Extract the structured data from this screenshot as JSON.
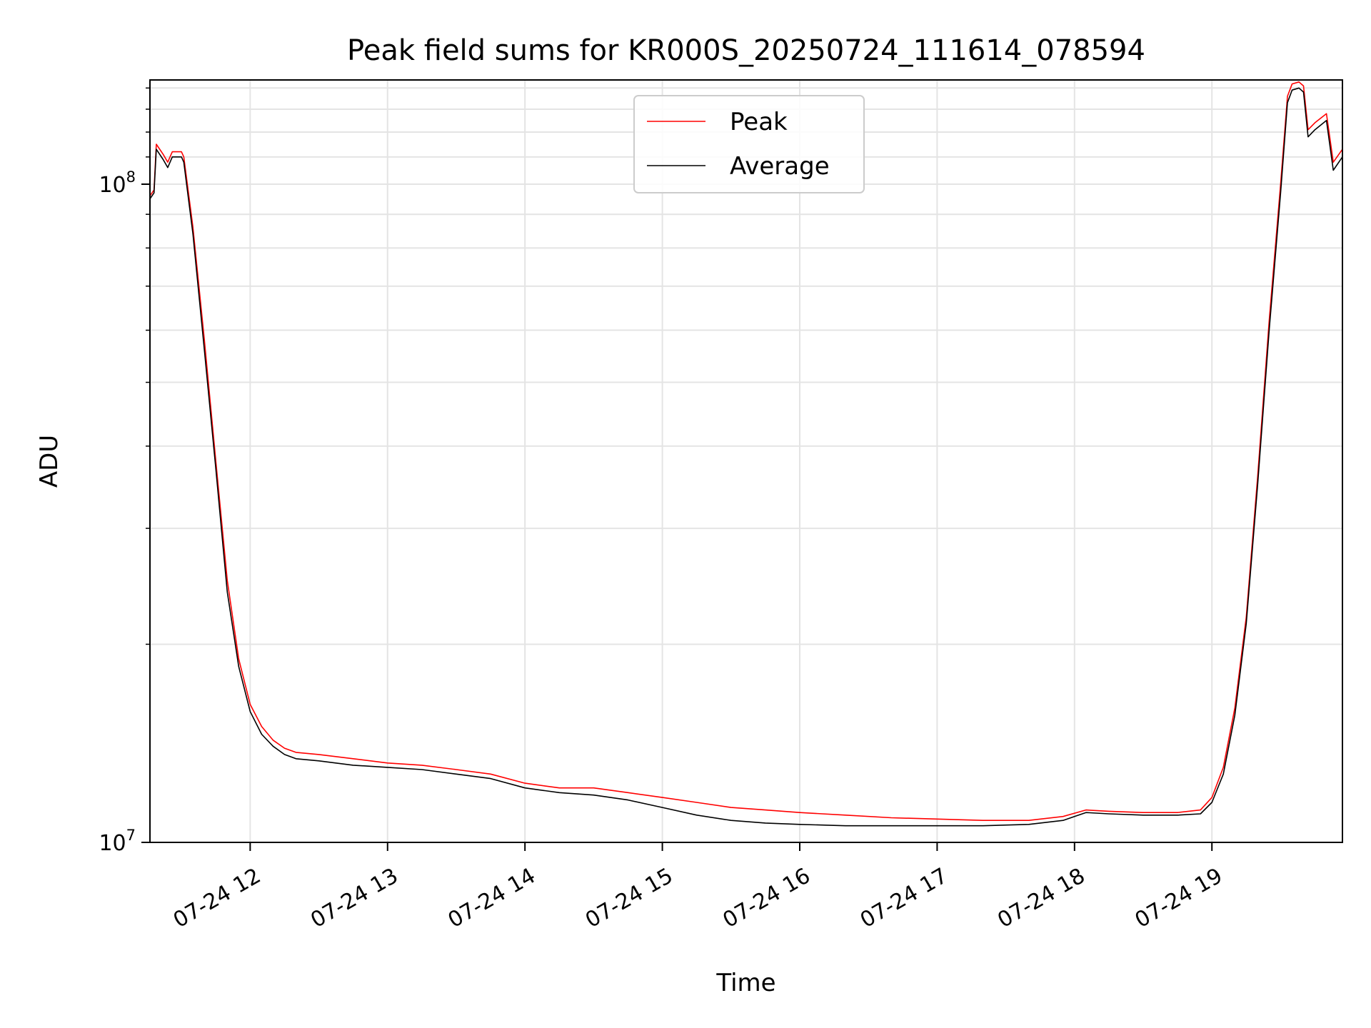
{
  "chart_data": {
    "type": "line",
    "title": "Peak field sums for KR000S_20250724_111614_078594",
    "xlabel": "Time",
    "ylabel": "ADU",
    "y_scale": "log",
    "ylim": [
      10000000,
      144000000
    ],
    "xlim": [
      "2025-07-24T11:16:14",
      "2025-07-24T19:57:00"
    ],
    "x_ticks": [
      {
        "t": "2025-07-24T12:00:00",
        "label": "07-24 12"
      },
      {
        "t": "2025-07-24T13:00:00",
        "label": "07-24 13"
      },
      {
        "t": "2025-07-24T14:00:00",
        "label": "07-24 14"
      },
      {
        "t": "2025-07-24T15:00:00",
        "label": "07-24 15"
      },
      {
        "t": "2025-07-24T16:00:00",
        "label": "07-24 16"
      },
      {
        "t": "2025-07-24T17:00:00",
        "label": "07-24 17"
      },
      {
        "t": "2025-07-24T18:00:00",
        "label": "07-24 18"
      },
      {
        "t": "2025-07-24T19:00:00",
        "label": "07-24 19"
      }
    ],
    "y_ticks": [
      {
        "v": 10000000,
        "base": "10",
        "exp": "7"
      },
      {
        "v": 100000000,
        "base": "10",
        "exp": "8"
      }
    ],
    "grid": true,
    "legend_position": "upper center",
    "series": [
      {
        "name": "Peak",
        "color": "#ff0000",
        "points": [
          [
            "2025-07-24T11:16:14",
            96000000
          ],
          [
            "2025-07-24T11:18:00",
            98000000
          ],
          [
            "2025-07-24T11:19:00",
            115000000
          ],
          [
            "2025-07-24T11:22:00",
            111000000
          ],
          [
            "2025-07-24T11:24:00",
            108000000
          ],
          [
            "2025-07-24T11:26:00",
            112000000
          ],
          [
            "2025-07-24T11:30:00",
            112000000
          ],
          [
            "2025-07-24T11:31:00",
            110000000
          ],
          [
            "2025-07-24T11:35:00",
            86000000
          ],
          [
            "2025-07-24T11:40:00",
            58000000
          ],
          [
            "2025-07-24T11:45:00",
            38000000
          ],
          [
            "2025-07-24T11:50:00",
            25000000
          ],
          [
            "2025-07-24T11:55:00",
            19000000
          ],
          [
            "2025-07-24T12:00:00",
            16200000
          ],
          [
            "2025-07-24T12:05:00",
            15000000
          ],
          [
            "2025-07-24T12:10:00",
            14300000
          ],
          [
            "2025-07-24T12:15:00",
            13900000
          ],
          [
            "2025-07-24T12:20:00",
            13700000
          ],
          [
            "2025-07-24T12:30:00",
            13600000
          ],
          [
            "2025-07-24T12:45:00",
            13400000
          ],
          [
            "2025-07-24T13:00:00",
            13200000
          ],
          [
            "2025-07-24T13:15:00",
            13100000
          ],
          [
            "2025-07-24T13:30:00",
            12900000
          ],
          [
            "2025-07-24T13:45:00",
            12700000
          ],
          [
            "2025-07-24T14:00:00",
            12300000
          ],
          [
            "2025-07-24T14:15:00",
            12100000
          ],
          [
            "2025-07-24T14:30:00",
            12100000
          ],
          [
            "2025-07-24T14:45:00",
            11900000
          ],
          [
            "2025-07-24T15:00:00",
            11700000
          ],
          [
            "2025-07-24T15:15:00",
            11500000
          ],
          [
            "2025-07-24T15:30:00",
            11300000
          ],
          [
            "2025-07-24T15:45:00",
            11200000
          ],
          [
            "2025-07-24T16:00:00",
            11100000
          ],
          [
            "2025-07-24T16:20:00",
            11000000
          ],
          [
            "2025-07-24T16:40:00",
            10900000
          ],
          [
            "2025-07-24T17:00:00",
            10850000
          ],
          [
            "2025-07-24T17:20:00",
            10800000
          ],
          [
            "2025-07-24T17:40:00",
            10800000
          ],
          [
            "2025-07-24T17:55:00",
            10950000
          ],
          [
            "2025-07-24T18:05:00",
            11200000
          ],
          [
            "2025-07-24T18:15:00",
            11150000
          ],
          [
            "2025-07-24T18:30:00",
            11100000
          ],
          [
            "2025-07-24T18:45:00",
            11100000
          ],
          [
            "2025-07-24T18:55:00",
            11200000
          ],
          [
            "2025-07-24T19:00:00",
            11700000
          ],
          [
            "2025-07-24T19:05:00",
            13000000
          ],
          [
            "2025-07-24T19:10:00",
            16000000
          ],
          [
            "2025-07-24T19:15:00",
            22000000
          ],
          [
            "2025-07-24T19:20:00",
            36000000
          ],
          [
            "2025-07-24T19:25:00",
            62000000
          ],
          [
            "2025-07-24T19:30:00",
            100000000
          ],
          [
            "2025-07-24T19:33:00",
            136000000
          ],
          [
            "2025-07-24T19:35:00",
            142000000
          ],
          [
            "2025-07-24T19:38:00",
            143000000
          ],
          [
            "2025-07-24T19:40:00",
            141000000
          ],
          [
            "2025-07-24T19:42:00",
            121000000
          ],
          [
            "2025-07-24T19:45:00",
            124000000
          ],
          [
            "2025-07-24T19:50:00",
            128000000
          ],
          [
            "2025-07-24T19:53:00",
            108000000
          ],
          [
            "2025-07-24T19:57:00",
            113000000
          ]
        ]
      },
      {
        "name": "Average",
        "color": "#000000",
        "points": [
          [
            "2025-07-24T11:16:14",
            95000000
          ],
          [
            "2025-07-24T11:18:00",
            97000000
          ],
          [
            "2025-07-24T11:19:00",
            113000000
          ],
          [
            "2025-07-24T11:22:00",
            109000000
          ],
          [
            "2025-07-24T11:24:00",
            106000000
          ],
          [
            "2025-07-24T11:26:00",
            110000000
          ],
          [
            "2025-07-24T11:30:00",
            110000000
          ],
          [
            "2025-07-24T11:31:00",
            108000000
          ],
          [
            "2025-07-24T11:35:00",
            84000000
          ],
          [
            "2025-07-24T11:40:00",
            56000000
          ],
          [
            "2025-07-24T11:45:00",
            37000000
          ],
          [
            "2025-07-24T11:50:00",
            24000000
          ],
          [
            "2025-07-24T11:55:00",
            18500000
          ],
          [
            "2025-07-24T12:00:00",
            15800000
          ],
          [
            "2025-07-24T12:05:00",
            14600000
          ],
          [
            "2025-07-24T12:10:00",
            14000000
          ],
          [
            "2025-07-24T12:15:00",
            13600000
          ],
          [
            "2025-07-24T12:20:00",
            13400000
          ],
          [
            "2025-07-24T12:30:00",
            13300000
          ],
          [
            "2025-07-24T12:45:00",
            13100000
          ],
          [
            "2025-07-24T13:00:00",
            13000000
          ],
          [
            "2025-07-24T13:15:00",
            12900000
          ],
          [
            "2025-07-24T13:30:00",
            12700000
          ],
          [
            "2025-07-24T13:45:00",
            12500000
          ],
          [
            "2025-07-24T14:00:00",
            12100000
          ],
          [
            "2025-07-24T14:15:00",
            11900000
          ],
          [
            "2025-07-24T14:30:00",
            11800000
          ],
          [
            "2025-07-24T14:45:00",
            11600000
          ],
          [
            "2025-07-24T15:00:00",
            11300000
          ],
          [
            "2025-07-24T15:15:00",
            11000000
          ],
          [
            "2025-07-24T15:30:00",
            10800000
          ],
          [
            "2025-07-24T15:45:00",
            10700000
          ],
          [
            "2025-07-24T16:00:00",
            10650000
          ],
          [
            "2025-07-24T16:20:00",
            10600000
          ],
          [
            "2025-07-24T16:40:00",
            10600000
          ],
          [
            "2025-07-24T17:00:00",
            10600000
          ],
          [
            "2025-07-24T17:20:00",
            10600000
          ],
          [
            "2025-07-24T17:40:00",
            10650000
          ],
          [
            "2025-07-24T17:55:00",
            10800000
          ],
          [
            "2025-07-24T18:05:00",
            11100000
          ],
          [
            "2025-07-24T18:15:00",
            11050000
          ],
          [
            "2025-07-24T18:30:00",
            11000000
          ],
          [
            "2025-07-24T18:45:00",
            11000000
          ],
          [
            "2025-07-24T18:55:00",
            11050000
          ],
          [
            "2025-07-24T19:00:00",
            11500000
          ],
          [
            "2025-07-24T19:05:00",
            12700000
          ],
          [
            "2025-07-24T19:10:00",
            15600000
          ],
          [
            "2025-07-24T19:15:00",
            21500000
          ],
          [
            "2025-07-24T19:20:00",
            35000000
          ],
          [
            "2025-07-24T19:25:00",
            60000000
          ],
          [
            "2025-07-24T19:30:00",
            97000000
          ],
          [
            "2025-07-24T19:33:00",
            133000000
          ],
          [
            "2025-07-24T19:35:00",
            139000000
          ],
          [
            "2025-07-24T19:38:00",
            140000000
          ],
          [
            "2025-07-24T19:40:00",
            138000000
          ],
          [
            "2025-07-24T19:42:00",
            118000000
          ],
          [
            "2025-07-24T19:45:00",
            121000000
          ],
          [
            "2025-07-24T19:50:00",
            125000000
          ],
          [
            "2025-07-24T19:53:00",
            105000000
          ],
          [
            "2025-07-24T19:57:00",
            110000000
          ]
        ]
      }
    ]
  }
}
